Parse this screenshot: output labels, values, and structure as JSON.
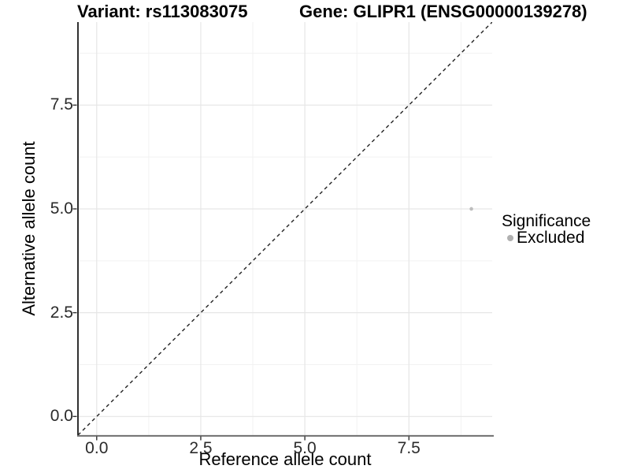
{
  "chart_data": {
    "type": "scatter",
    "title_left": "Variant: rs113083075",
    "title_right": "Gene: GLIPR1 (ENSG00000139278)",
    "xlabel": "Reference allele count",
    "ylabel": "Alternative allele count",
    "xlim": [
      -0.45,
      9.5
    ],
    "ylim": [
      -0.45,
      9.5
    ],
    "x_ticks": {
      "values": [
        0,
        2.5,
        5,
        7.5
      ],
      "labels": [
        "0.0",
        "2.5",
        "5.0",
        "7.5"
      ]
    },
    "y_ticks": {
      "values": [
        0,
        2.5,
        5,
        7.5
      ],
      "labels": [
        "0.0",
        "2.5",
        "5.0",
        "7.5"
      ]
    },
    "x_minor": [
      1.25,
      3.75,
      6.25,
      8.75
    ],
    "y_minor": [
      1.25,
      3.75,
      6.25,
      8.75
    ],
    "grid": {
      "major_color": "#e6e6e6",
      "minor_color": "#f2f2f2",
      "background": "#ffffff"
    },
    "identity_line": {
      "slope": 1,
      "intercept": 0,
      "style": "dashed",
      "color": "#222222"
    },
    "series": [
      {
        "name": "Excluded",
        "color": "#bdbdbd",
        "point_radius": 2.3,
        "points": [
          {
            "x": 9,
            "y": 5
          }
        ]
      }
    ],
    "legend": {
      "title": "Significance",
      "position": "right",
      "entries": [
        {
          "label": "Excluded",
          "color": "#b0b0b0"
        }
      ]
    }
  },
  "colors": {
    "axis_line_left": "#1a1a1a",
    "axis_line_bottom": "#6e6e6e",
    "tick_mark": "#333333",
    "tick_label": "#2b2b2b"
  }
}
